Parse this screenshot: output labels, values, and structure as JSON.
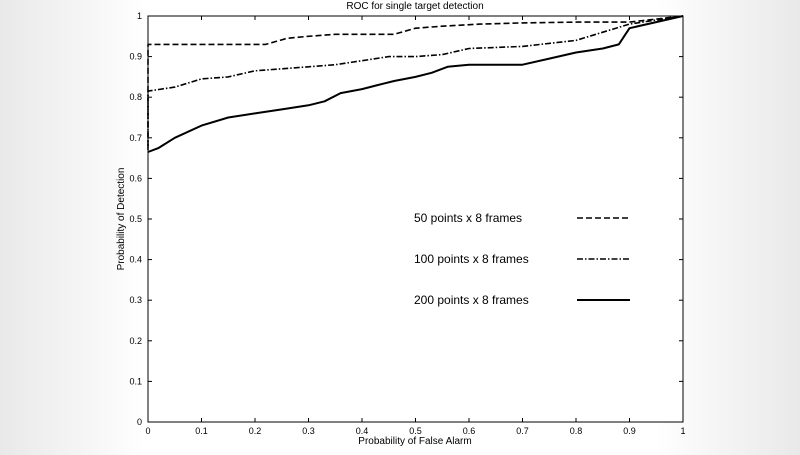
{
  "chart_data": {
    "type": "line",
    "title": "ROC for single target detection",
    "xlabel": "Probability of False Alarm",
    "ylabel": "Probability of Detection",
    "xlim": [
      0,
      1
    ],
    "ylim": [
      0,
      1
    ],
    "xticks": [
      "0",
      "0.1",
      "0.2",
      "0.3",
      "0.4",
      "0.5",
      "0.6",
      "0.7",
      "0.8",
      "0.9",
      "1"
    ],
    "yticks": [
      "0",
      "0.1",
      "0.2",
      "0.3",
      "0.4",
      "0.5",
      "0.6",
      "0.7",
      "0.8",
      "0.9",
      "1"
    ],
    "grid": false,
    "legend_position": "center-right",
    "series": [
      {
        "name": "50 points x 8 frames",
        "line_style": "dashed",
        "color": "#000000",
        "x": [
          0,
          0,
          0.22,
          0.26,
          0.3,
          0.35,
          0.46,
          0.5,
          0.55,
          0.62,
          0.7,
          0.8,
          0.9,
          1.0
        ],
        "y": [
          0.68,
          0.93,
          0.93,
          0.945,
          0.95,
          0.955,
          0.955,
          0.97,
          0.975,
          0.98,
          0.983,
          0.985,
          0.985,
          1.0
        ]
      },
      {
        "name": "100 points x 8 frames",
        "line_style": "dash-dot",
        "color": "#000000",
        "x": [
          0,
          0,
          0.05,
          0.1,
          0.15,
          0.2,
          0.25,
          0.3,
          0.35,
          0.4,
          0.45,
          0.5,
          0.55,
          0.6,
          0.7,
          0.8,
          0.85,
          0.9,
          1.0
        ],
        "y": [
          0.67,
          0.815,
          0.825,
          0.845,
          0.85,
          0.865,
          0.87,
          0.875,
          0.88,
          0.89,
          0.9,
          0.9,
          0.905,
          0.92,
          0.925,
          0.94,
          0.96,
          0.98,
          1.0
        ]
      },
      {
        "name": "200 points x 8 frames",
        "line_style": "solid",
        "color": "#000000",
        "x": [
          0,
          0.02,
          0.05,
          0.1,
          0.15,
          0.2,
          0.25,
          0.3,
          0.33,
          0.36,
          0.4,
          0.43,
          0.46,
          0.5,
          0.53,
          0.56,
          0.6,
          0.7,
          0.75,
          0.8,
          0.85,
          0.88,
          0.9,
          1.0
        ],
        "y": [
          0.665,
          0.675,
          0.7,
          0.73,
          0.75,
          0.76,
          0.77,
          0.78,
          0.79,
          0.81,
          0.82,
          0.83,
          0.84,
          0.85,
          0.86,
          0.875,
          0.88,
          0.88,
          0.895,
          0.91,
          0.92,
          0.93,
          0.97,
          1.0
        ]
      }
    ]
  }
}
